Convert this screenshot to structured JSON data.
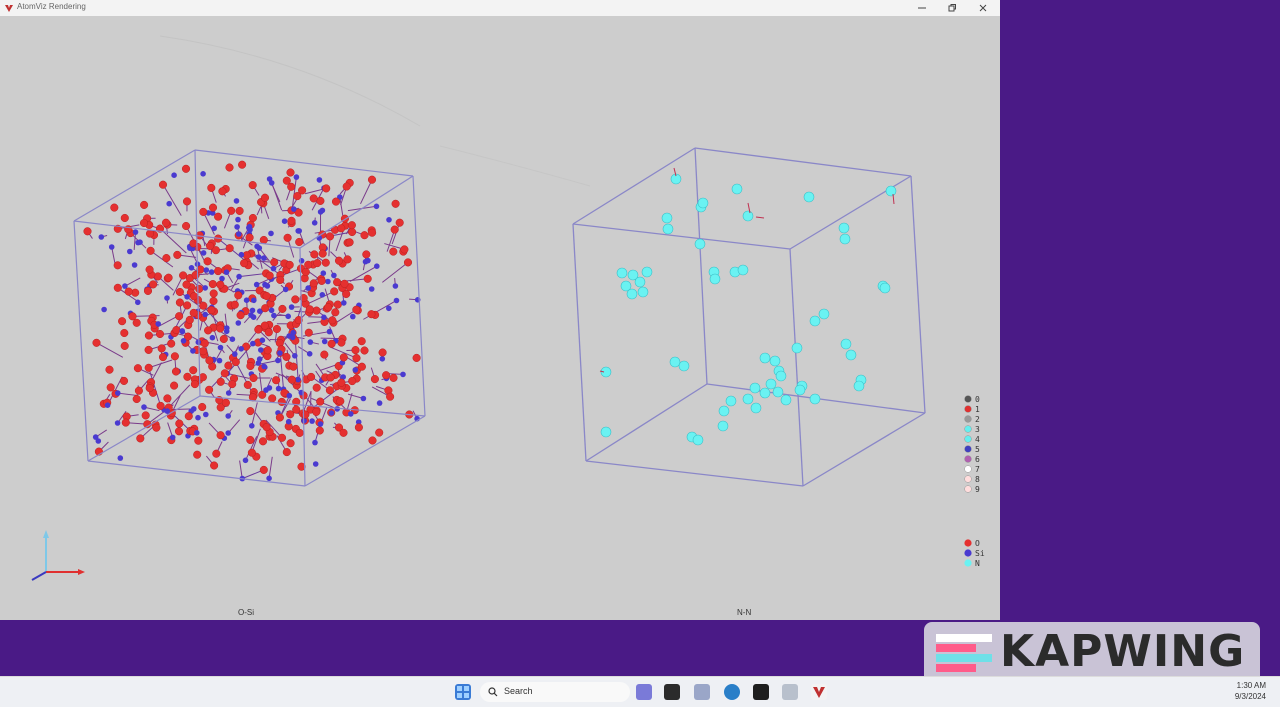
{
  "window": {
    "title": "AtomViz Rendering"
  },
  "viewports": {
    "left_label": "O-Si",
    "right_label": "N-N"
  },
  "legend_numbers": [
    "0",
    "1",
    "2",
    "3",
    "4",
    "5",
    "6",
    "7",
    "8",
    "9"
  ],
  "legend_numbers_colors": [
    "#555555",
    "#e03030",
    "#999999",
    "#66eeee",
    "#66eeee",
    "#4040c0",
    "#b060b0",
    "#ffffff",
    "#ffdddd",
    "#ffdddd"
  ],
  "legend_elements": [
    {
      "label": "O",
      "color": "#e53030"
    },
    {
      "label": "Si",
      "color": "#4a3ad0"
    },
    {
      "label": "N",
      "color": "#6af2f2"
    }
  ],
  "taskbar": {
    "search_placeholder": "Search",
    "time": "1:30 AM",
    "date": "9/3/2024"
  },
  "watermark": {
    "text": "KAPWING"
  },
  "colors": {
    "window_bg": "#cdcdcd",
    "brand_purple": "#4a1a86",
    "cube_edge": "#8a87c8"
  }
}
